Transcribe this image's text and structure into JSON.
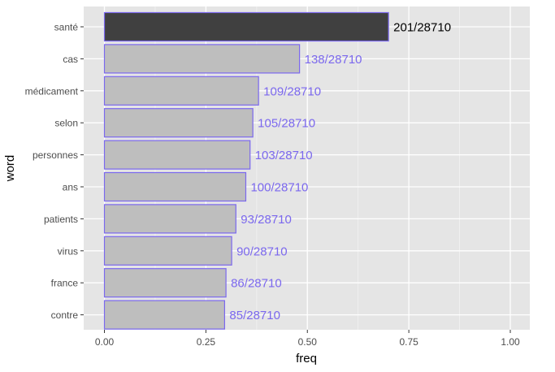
{
  "chart_data": {
    "type": "bar",
    "orientation": "horizontal",
    "xlabel": "freq",
    "ylabel": "word",
    "xlim": [
      -0.05,
      1.05
    ],
    "x_ticks": [
      0.0,
      0.25,
      0.5,
      0.75,
      1.0
    ],
    "x_tick_labels": [
      "0.00",
      "0.25",
      "0.50",
      "0.75",
      "1.00"
    ],
    "grid": true,
    "legend": "none",
    "categories": [
      "santé",
      "cas",
      "médicament",
      "selon",
      "personnes",
      "ans",
      "patients",
      "virus",
      "france",
      "contre"
    ],
    "values": [
      0.7,
      0.4807,
      0.3797,
      0.3657,
      0.3588,
      0.3483,
      0.3239,
      0.3135,
      0.2995,
      0.2961
    ],
    "labels": [
      "201/28710",
      "138/28710",
      "109/28710",
      "105/28710",
      "103/28710",
      "100/28710",
      "93/28710",
      "90/28710",
      "86/28710",
      "85/28710"
    ],
    "highlight_index": 0,
    "colors": {
      "panel_background": "#e5e5e5",
      "grid_major": "#ffffff",
      "grid_minor": "#f2f2f2",
      "highlight_fill": "#404040",
      "bar_fill": "#bebebe",
      "bar_outline": "#7b68ee",
      "highlight_label": "#000000",
      "label": "#7b68ee",
      "axis_text": "#4d4d4d",
      "axis_title": "#000000"
    }
  }
}
